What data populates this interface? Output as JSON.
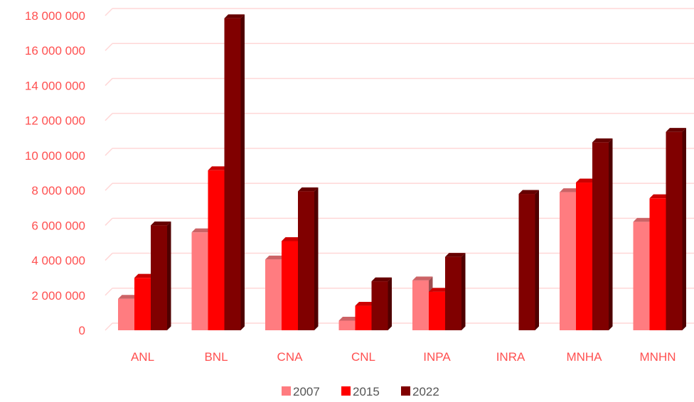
{
  "chart_data": {
    "type": "bar",
    "categories": [
      "ANL",
      "BNL",
      "CNA",
      "CNL",
      "INPA",
      "INRA",
      "MNHA",
      "MNHN"
    ],
    "series": [
      {
        "name": "2007",
        "color": "#ff7c80",
        "values": [
          1800000,
          5600000,
          4050000,
          550000,
          2850000,
          0,
          7900000,
          6200000
        ]
      },
      {
        "name": "2015",
        "color": "#ff0000",
        "values": [
          3000000,
          9150000,
          5100000,
          1400000,
          2200000,
          0,
          8450000,
          7550000
        ]
      },
      {
        "name": "2022",
        "color": "#800000",
        "values": [
          6000000,
          17850000,
          7950000,
          2800000,
          4200000,
          7800000,
          10750000,
          11350000
        ]
      }
    ],
    "ylim": [
      0,
      18000000
    ],
    "yticks": [
      0,
      2000000,
      4000000,
      6000000,
      8000000,
      10000000,
      12000000,
      14000000,
      16000000,
      18000000
    ],
    "ytick_labels": [
      "0",
      "2 000 000",
      "4 000 000",
      "6 000 000",
      "8 000 000",
      "10 000 000",
      "12 000 000",
      "14 000 000",
      "16 000 000",
      "18 000 000"
    ],
    "grid": true,
    "legend_position": "bottom",
    "axis_label_color": "#ff5050",
    "gridline_color": "#ffd7d7"
  }
}
